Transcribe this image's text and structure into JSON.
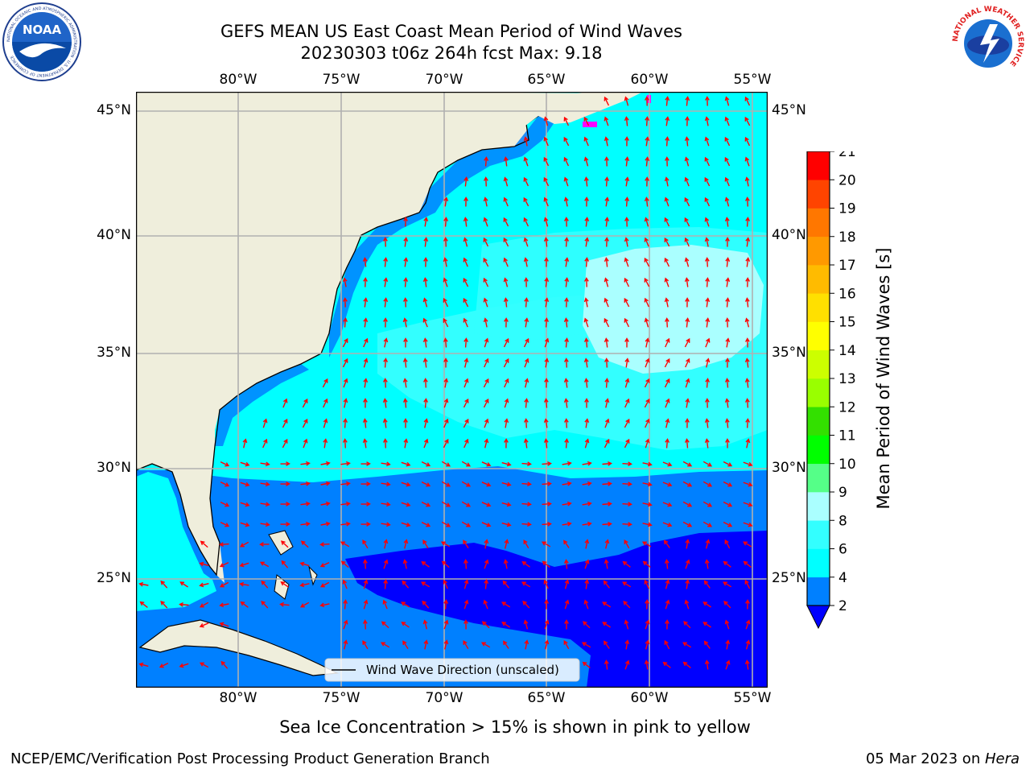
{
  "header": {
    "title_line1": "GEFS MEAN US East Coast Mean Period of Wind Waves",
    "title_line2": "20230303 t06z 264h fcst   Max: 9.18"
  },
  "logos": {
    "left": {
      "icon": "noaa-logo",
      "text": "NOAA",
      "ring_text": "NATIONAL OCEANIC AND ATMOSPHERIC ADMINISTRATION · U.S. DEPARTMENT OF COMMERCE"
    },
    "right": {
      "icon": "nws-logo",
      "ring_text": "NATIONAL WEATHER SERVICE"
    }
  },
  "map": {
    "lon_labels": [
      "80°W",
      "75°W",
      "70°W",
      "65°W",
      "60°W",
      "55°W"
    ],
    "lat_labels": [
      "45°N",
      "40°N",
      "35°N",
      "30°N",
      "25°N"
    ],
    "legend_label": "Wind Wave Direction (unscaled)",
    "colors": {
      "land": "#efeedc",
      "coast": "#000000",
      "grid": "#b0b0b0",
      "arrow": "#ff0000",
      "band_0_2": "#0000ff",
      "band_2_4": "#0080ff",
      "band_4_6": "#00ffff",
      "band_6_8": "#33ffff",
      "band_8_9": "#aaffff",
      "sea_ice": "#ff00ff"
    }
  },
  "colorbar": {
    "label": "Mean Period of Wind Waves [s]",
    "ticks": [
      "2",
      "4",
      "6",
      "8",
      "9",
      "10",
      "11",
      "12",
      "13",
      "14",
      "15",
      "16",
      "17",
      "18",
      "19",
      "20",
      "21"
    ],
    "colors": [
      "#0080ff",
      "#00ffff",
      "#33ffff",
      "#aaffff",
      "#55ff88",
      "#00ff00",
      "#33e000",
      "#99ff00",
      "#ccff00",
      "#ffff00",
      "#ffe000",
      "#ffbb00",
      "#ff9900",
      "#ff7700",
      "#ff4400",
      "#ff0000"
    ],
    "extend_color": "#0000ff"
  },
  "footer": {
    "note": "Sea Ice Concentration > 15% is shown in pink to yellow",
    "credit": "NCEP/EMC/Verification Post Processing Product Generation Branch",
    "date": "05 Mar 2023 on ",
    "host": "Hera"
  }
}
